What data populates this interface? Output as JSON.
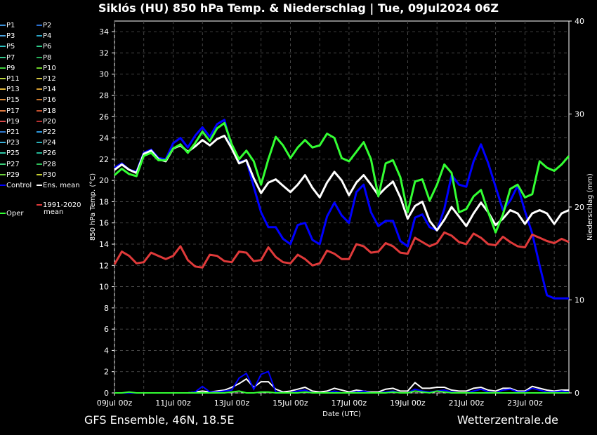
{
  "title": "Siklós  (HU)  850 hPa Temp. & Niederschlag | Tue, 09Jul2024 06Z",
  "footer": {
    "left": "GFS Ensemble, 46N, 18.5E",
    "right": "Wetterzentrale.de"
  },
  "colors": {
    "background": "#000000",
    "control": "#0000ff",
    "ens_mean": "#ffffff",
    "oper": "#33ff33",
    "climate": "#e03a3a"
  },
  "legend": [
    {
      "label": "P1",
      "color": "#3b8fd6"
    },
    {
      "label": "P2",
      "color": "#2a6fd0"
    },
    {
      "label": "P3",
      "color": "#4aa3e0"
    },
    {
      "label": "P4",
      "color": "#2ba8c9"
    },
    {
      "label": "P5",
      "color": "#2cc0c0"
    },
    {
      "label": "P6",
      "color": "#2ecc8a"
    },
    {
      "label": "P7",
      "color": "#34c88c"
    },
    {
      "label": "P8",
      "color": "#27b15a"
    },
    {
      "label": "P9",
      "color": "#3ccf3c"
    },
    {
      "label": "P10",
      "color": "#6fd32a"
    },
    {
      "label": "P11",
      "color": "#b7d23a"
    },
    {
      "label": "P12",
      "color": "#d6c844"
    },
    {
      "label": "P13",
      "color": "#e0b83a"
    },
    {
      "label": "P14",
      "color": "#d9a031"
    },
    {
      "label": "P15",
      "color": "#d98a3a"
    },
    {
      "label": "P16",
      "color": "#c87530"
    },
    {
      "label": "P17",
      "color": "#e07a3f"
    },
    {
      "label": "P18",
      "color": "#c4502e"
    },
    {
      "label": "P19",
      "color": "#d84a4a"
    },
    {
      "label": "P20",
      "color": "#b83030"
    },
    {
      "label": "P21",
      "color": "#2f7ad0"
    },
    {
      "label": "P22",
      "color": "#2e9ae0"
    },
    {
      "label": "P23",
      "color": "#3ab0d8"
    },
    {
      "label": "P24",
      "color": "#2ab0b8"
    },
    {
      "label": "P25",
      "color": "#2fc8a8"
    },
    {
      "label": "P26",
      "color": "#24b898"
    },
    {
      "label": "P27",
      "color": "#3cd07a"
    },
    {
      "label": "P28",
      "color": "#2fbf5a"
    },
    {
      "label": "P29",
      "color": "#6ad03a"
    },
    {
      "label": "P30",
      "color": "#c8d030"
    },
    {
      "label": "Control",
      "color": "#0000ff"
    },
    {
      "label": "Ens. mean",
      "color": "#ffffff"
    },
    {
      "label": "Oper",
      "color": "#33ff33"
    },
    {
      "label": "1991-2020",
      "color": "#e03a3a"
    },
    {
      "label": "mean",
      "color": ""
    }
  ],
  "chart_data": {
    "type": "line",
    "x_start": "09Jul 00z",
    "x_step_hours": 6,
    "x_count": 63,
    "x_ticks": [
      "09Jul 00z",
      "11Jul 00z",
      "13Jul 00z",
      "15Jul 00z",
      "17Jul 00z",
      "19Jul 00z",
      "21Jul 00z",
      "23Jul 00z"
    ],
    "xlabel": "Date (UTC)",
    "ylabel": "850 hPa Temp. (°C)",
    "ylabel_right": "Niederschlag (mm)",
    "ylim": [
      0,
      35
    ],
    "ylim_right": [
      0,
      40
    ],
    "yticks": [
      0,
      2,
      4,
      6,
      8,
      10,
      12,
      14,
      16,
      18,
      20,
      22,
      24,
      26,
      28,
      30,
      32,
      34
    ],
    "yticks_right": [
      0,
      10,
      20,
      30,
      40
    ],
    "grid": true,
    "series": [
      {
        "name": "Control",
        "color": "#0000ff",
        "values": [
          21.2,
          21.6,
          21.0,
          20.8,
          22.6,
          22.9,
          22.1,
          22.0,
          23.5,
          24.0,
          23.1,
          24.2,
          25.0,
          24.1,
          25.3,
          25.7,
          23.1,
          21.7,
          21.9,
          19.4,
          17.0,
          15.6,
          15.6,
          14.5,
          14.0,
          15.8,
          16.0,
          14.4,
          14.0,
          16.6,
          17.9,
          16.7,
          16.0,
          18.9,
          19.6,
          17.0,
          15.7,
          16.2,
          16.2,
          14.3,
          13.8,
          16.5,
          16.8,
          15.6,
          15.3,
          17.3,
          20.5,
          19.6,
          19.4,
          21.8,
          23.4,
          21.6,
          19.4,
          17.2,
          18.1,
          19.5,
          17.1,
          15.0,
          12.0,
          9.2,
          8.9,
          8.9,
          8.9
        ]
      },
      {
        "name": "Ens. mean",
        "color": "#ffffff",
        "values": [
          21.0,
          21.5,
          21.0,
          20.7,
          22.5,
          22.8,
          22.0,
          21.8,
          23.0,
          23.3,
          22.7,
          23.2,
          23.8,
          23.3,
          23.9,
          24.2,
          23.0,
          21.6,
          21.9,
          20.2,
          18.8,
          19.8,
          20.1,
          19.5,
          18.9,
          19.6,
          20.5,
          19.3,
          18.4,
          19.8,
          20.8,
          20.0,
          18.6,
          19.8,
          20.5,
          19.6,
          18.6,
          19.3,
          19.9,
          18.4,
          16.4,
          17.6,
          18.0,
          16.2,
          15.3,
          16.3,
          17.5,
          16.6,
          15.7,
          16.9,
          17.9,
          17.0,
          15.8,
          16.4,
          17.2,
          16.9,
          15.9,
          16.9,
          17.2,
          16.9,
          15.9,
          16.9,
          17.2
        ]
      },
      {
        "name": "Oper",
        "color": "#33ff33",
        "values": [
          20.5,
          21.1,
          20.6,
          20.4,
          22.3,
          22.6,
          21.9,
          21.9,
          23.0,
          23.4,
          22.6,
          23.5,
          24.6,
          23.7,
          24.9,
          25.4,
          23.4,
          22.0,
          22.8,
          21.8,
          19.6,
          22.0,
          24.1,
          23.3,
          22.1,
          23.1,
          23.8,
          23.1,
          23.3,
          24.4,
          24.0,
          22.1,
          21.8,
          22.7,
          23.6,
          22.0,
          18.5,
          21.6,
          21.9,
          20.3,
          17.0,
          19.9,
          20.1,
          18.1,
          19.6,
          21.5,
          20.7,
          17.0,
          17.3,
          18.5,
          19.1,
          17.0,
          15.1,
          16.8,
          19.2,
          19.6,
          18.4,
          18.7,
          21.8,
          21.2,
          20.9,
          21.5,
          22.3
        ]
      },
      {
        "name": "1991-2020 mean",
        "color": "#e03a3a",
        "values": [
          12.1,
          13.3,
          12.9,
          12.2,
          12.3,
          13.2,
          12.9,
          12.6,
          12.9,
          13.8,
          12.5,
          11.9,
          11.8,
          13.0,
          12.9,
          12.4,
          12.3,
          13.3,
          13.2,
          12.4,
          12.5,
          13.7,
          12.8,
          12.3,
          12.2,
          13.0,
          12.6,
          12.0,
          12.2,
          13.4,
          13.1,
          12.6,
          12.6,
          14.0,
          13.8,
          13.2,
          13.3,
          14.1,
          13.8,
          13.2,
          13.1,
          14.6,
          14.2,
          13.8,
          14.1,
          15.1,
          14.8,
          14.2,
          14.0,
          15.0,
          14.6,
          14.0,
          13.9,
          14.7,
          14.2,
          13.8,
          13.7,
          14.9,
          14.6,
          14.3,
          14.1,
          14.5,
          14.2
        ]
      }
    ],
    "precip_series": [
      {
        "name": "Ens. mean",
        "color": "#ffffff",
        "values": [
          0,
          0,
          0,
          0,
          0,
          0,
          0,
          0,
          0,
          0,
          0,
          0.1,
          0.2,
          0.1,
          0.2,
          0.3,
          0.6,
          1.0,
          1.5,
          0.6,
          1.2,
          1.2,
          0.4,
          0.1,
          0.2,
          0.4,
          0.6,
          0.2,
          0.1,
          0.2,
          0.5,
          0.3,
          0.1,
          0.3,
          0.2,
          0.1,
          0.1,
          0.4,
          0.5,
          0.2,
          0.2,
          1.1,
          0.5,
          0.5,
          0.6,
          0.6,
          0.3,
          0.2,
          0.2,
          0.5,
          0.6,
          0.3,
          0.2,
          0.5,
          0.5,
          0.2,
          0.2,
          0.7,
          0.5,
          0.3,
          0.2,
          0.3,
          0.3
        ]
      },
      {
        "name": "Control",
        "color": "#0000ff",
        "values": [
          0,
          0,
          0,
          0,
          0,
          0,
          0,
          0,
          0,
          0,
          0,
          0.1,
          0.7,
          0.1,
          0.1,
          0.2,
          0.3,
          1.6,
          2.1,
          0.4,
          2.0,
          2.3,
          0.1,
          0,
          0,
          0.2,
          0.3,
          0,
          0,
          0,
          0.2,
          0,
          0,
          0.1,
          0.2,
          0,
          0,
          0.1,
          0.2,
          0,
          0,
          0.4,
          0.2,
          0.1,
          0.2,
          0.3,
          0.1,
          0,
          0,
          0.2,
          0.4,
          0.1,
          0,
          0.3,
          0.4,
          0.1,
          0.1,
          0.5,
          0.3,
          0.1,
          0.1,
          0.2,
          0.1
        ]
      },
      {
        "name": "Oper",
        "color": "#33ff33",
        "values": [
          0,
          0,
          0.1,
          0,
          0,
          0,
          0,
          0,
          0,
          0,
          0,
          0,
          0,
          0,
          0,
          0,
          0.1,
          0.2,
          0,
          0,
          0.1,
          0.1,
          0,
          0,
          0,
          0,
          0.1,
          0,
          0,
          0,
          0,
          0,
          0,
          0,
          0,
          0,
          0,
          0,
          0.1,
          0,
          0,
          0.2,
          0.1,
          0,
          0.2,
          0.1,
          0,
          0,
          0,
          0,
          0,
          0,
          0,
          0,
          0,
          0,
          0,
          0,
          0,
          0,
          0,
          0,
          0
        ]
      }
    ]
  }
}
